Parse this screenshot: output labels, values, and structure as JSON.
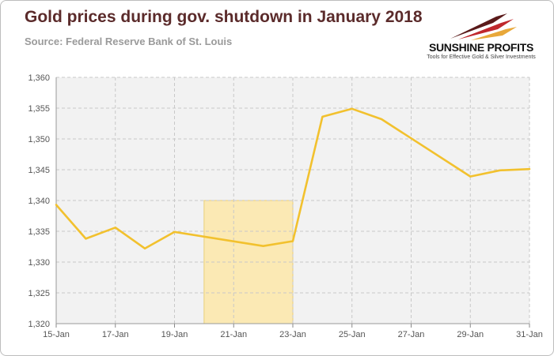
{
  "header": {
    "title": "Gold prices during gov. shutdown in January 2018",
    "source": "Source: Federal Reserve Bank of St. Louis"
  },
  "logo": {
    "name": "SUNSHINE PROFITS",
    "tagline": "Tools for Effective Gold & Silver Investments",
    "colors": {
      "dark": "#5a1a1a",
      "red": "#c0282d",
      "gold": "#e8a83a"
    }
  },
  "chart_data": {
    "type": "line",
    "title": "Gold prices during gov. shutdown in January 2018",
    "subtitle": "Source: Federal Reserve Bank of St. Louis",
    "x_ticks": [
      "15-Jan",
      "17-Jan",
      "19-Jan",
      "21-Jan",
      "23-Jan",
      "25-Jan",
      "27-Jan",
      "29-Jan",
      "31-Jan"
    ],
    "y_ticks": [
      "1,320",
      "1,325",
      "1,330",
      "1,335",
      "1,340",
      "1,345",
      "1,350",
      "1,355",
      "1,360"
    ],
    "xlim": [
      "2018-01-15",
      "2018-01-31"
    ],
    "ylim": [
      1320,
      1360
    ],
    "grid": true,
    "legend": "none",
    "line_color": "#f2c12e",
    "highlight": {
      "x_start": "2018-01-20",
      "x_end": "2018-01-23",
      "y_top": 1340,
      "color": "#fbe9b4"
    },
    "series": [
      {
        "x": [
          "2018-01-15",
          "2018-01-16",
          "2018-01-17",
          "2018-01-18",
          "2018-01-19",
          "2018-01-22",
          "2018-01-23",
          "2018-01-24",
          "2018-01-25",
          "2018-01-26",
          "2018-01-29",
          "2018-01-30",
          "2018-01-31"
        ],
        "y": [
          1339.3,
          1333.8,
          1335.6,
          1332.2,
          1334.9,
          1332.6,
          1333.4,
          1353.6,
          1354.9,
          1353.2,
          1343.9,
          1344.9,
          1345.1
        ]
      }
    ]
  }
}
